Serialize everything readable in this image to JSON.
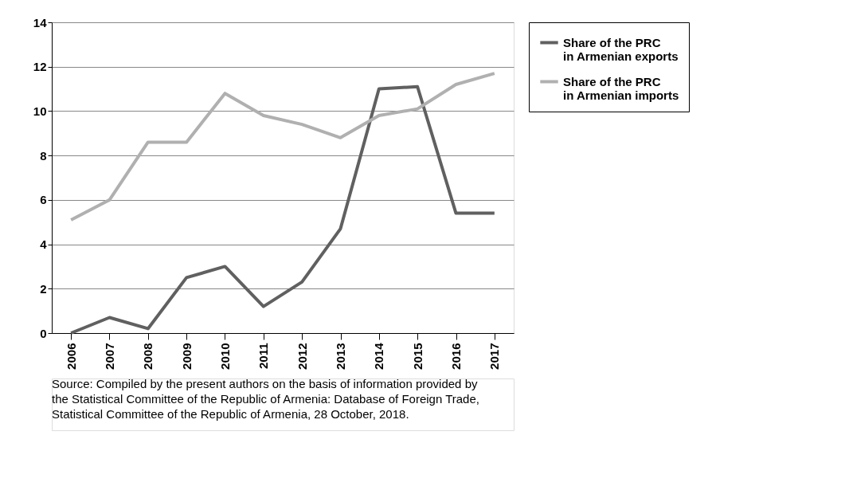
{
  "chart_data": {
    "type": "line",
    "categories": [
      "2006",
      "2007",
      "2008",
      "2009",
      "2010",
      "2011",
      "2012",
      "2013",
      "2014",
      "2015",
      "2016",
      "2017"
    ],
    "series": [
      {
        "name": "Share of the PRC\nin Armenian exports",
        "color": "#606060",
        "values": [
          0,
          0.7,
          0.2,
          2.5,
          3.0,
          1.2,
          2.3,
          4.7,
          11.0,
          11.1,
          5.4,
          5.4
        ]
      },
      {
        "name": "Share of the PRC\nin Armenian imports",
        "color": "#b0b0b0",
        "values": [
          5.1,
          6.0,
          8.6,
          8.6,
          10.8,
          9.8,
          9.4,
          8.8,
          9.8,
          10.1,
          11.2,
          11.7
        ]
      }
    ],
    "ylim": [
      0,
      14
    ],
    "yticks": [
      0,
      2,
      4,
      6,
      8,
      10,
      12,
      14
    ],
    "grid": "y",
    "legend": "right",
    "marker": "none",
    "line_style": "solid",
    "annotations": [
      "Source:  Compiled by the present authors on the basis of information provided by\nthe Statistical Committee of the Republic of Armenia: Database of Foreign Trade,\nStatistical Committee of the Republic of Armenia, 28 October, 2018."
    ]
  }
}
